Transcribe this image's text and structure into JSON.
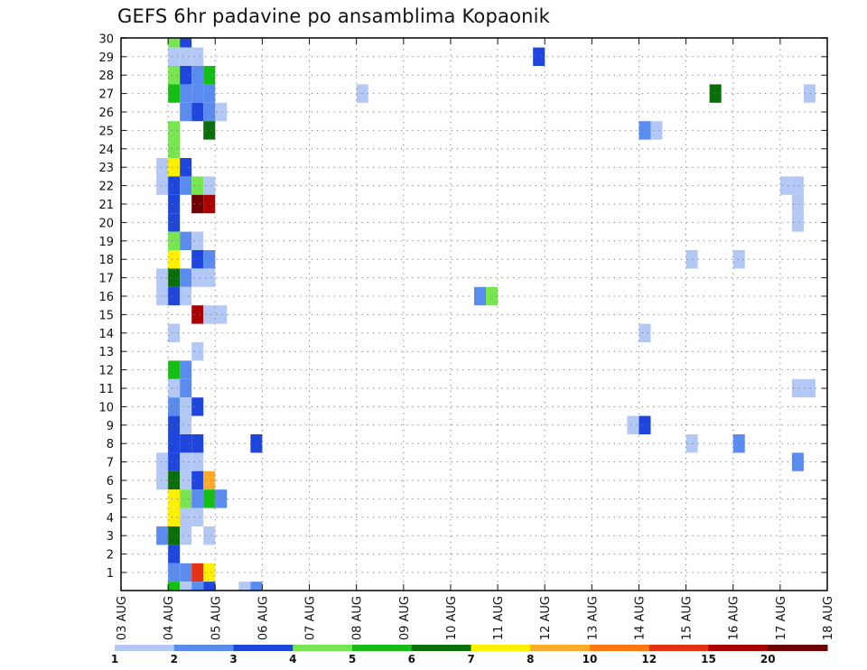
{
  "chart_data": {
    "type": "heatmap",
    "title": "GEFS 6hr padavine po ansamblima Kopaonik",
    "x_tick_labels": [
      "03 AUG",
      "04 AUG",
      "05 AUG",
      "06 AUG",
      "07 AUG",
      "08 AUG",
      "09 AUG",
      "10 AUG",
      "11 AUG",
      "12 AUG",
      "13 AUG",
      "14 AUG",
      "15 AUG",
      "16 AUG",
      "17 AUG",
      "18 AUG"
    ],
    "y_tick_labels": [
      "1",
      "2",
      "3",
      "4",
      "5",
      "6",
      "7",
      "8",
      "9",
      "10",
      "11",
      "12",
      "13",
      "14",
      "15",
      "16",
      "17",
      "18",
      "19",
      "20",
      "21",
      "22",
      "23",
      "24",
      "25",
      "26",
      "27",
      "28",
      "29",
      "30"
    ],
    "xlim": [
      "03 AUG 00Z",
      "18 AUG 00Z"
    ],
    "ylim": [
      1,
      30
    ],
    "grid": true,
    "legend_position": "bottom",
    "color_scale": {
      "labels": [
        "1",
        "2",
        "3",
        "4",
        "5",
        "6",
        "7",
        "8",
        "10",
        "12",
        "15",
        "20"
      ],
      "colors": [
        "#b4c8f5",
        "#5a8cf0",
        "#1e46dc",
        "#78e650",
        "#14be14",
        "#0a6e0a",
        "#fff000",
        "#ffaa28",
        "#ff7814",
        "#e63214",
        "#aa0000",
        "#6e0000"
      ]
    },
    "cells": [
      {
        "member": 30,
        "t": 4,
        "c": "#78e650"
      },
      {
        "member": 30,
        "t": 5,
        "c": "#1e46dc"
      },
      {
        "member": 29,
        "t": 4,
        "c": "#b4c8f5"
      },
      {
        "member": 29,
        "t": 5,
        "c": "#b4c8f5"
      },
      {
        "member": 29,
        "t": 6,
        "c": "#b4c8f5"
      },
      {
        "member": 29,
        "t": 35,
        "c": "#1e46dc"
      },
      {
        "member": 28,
        "t": 4,
        "c": "#78e650"
      },
      {
        "member": 28,
        "t": 5,
        "c": "#1e46dc"
      },
      {
        "member": 28,
        "t": 6,
        "c": "#5a8cf0"
      },
      {
        "member": 28,
        "t": 7,
        "c": "#14be14"
      },
      {
        "member": 27,
        "t": 4,
        "c": "#14be14"
      },
      {
        "member": 27,
        "t": 5,
        "c": "#5a8cf0"
      },
      {
        "member": 27,
        "t": 6,
        "c": "#5a8cf0"
      },
      {
        "member": 27,
        "t": 7,
        "c": "#5a8cf0"
      },
      {
        "member": 27,
        "t": 20,
        "c": "#b4c8f5"
      },
      {
        "member": 27,
        "t": 50,
        "c": "#0a6e0a"
      },
      {
        "member": 27,
        "t": 58,
        "c": "#b4c8f5"
      },
      {
        "member": 26,
        "t": 5,
        "c": "#5a8cf0"
      },
      {
        "member": 26,
        "t": 6,
        "c": "#1e46dc"
      },
      {
        "member": 26,
        "t": 7,
        "c": "#5a8cf0"
      },
      {
        "member": 26,
        "t": 8,
        "c": "#b4c8f5"
      },
      {
        "member": 25,
        "t": 4,
        "c": "#78e650"
      },
      {
        "member": 25,
        "t": 7,
        "c": "#0a6e0a"
      },
      {
        "member": 25,
        "t": 44,
        "c": "#5a8cf0"
      },
      {
        "member": 25,
        "t": 45,
        "c": "#b4c8f5"
      },
      {
        "member": 24,
        "t": 4,
        "c": "#78e650"
      },
      {
        "member": 23,
        "t": 3,
        "c": "#b4c8f5"
      },
      {
        "member": 23,
        "t": 4,
        "c": "#fff000"
      },
      {
        "member": 23,
        "t": 5,
        "c": "#1e46dc"
      },
      {
        "member": 22,
        "t": 3,
        "c": "#b4c8f5"
      },
      {
        "member": 22,
        "t": 4,
        "c": "#1e46dc"
      },
      {
        "member": 22,
        "t": 5,
        "c": "#5a8cf0"
      },
      {
        "member": 22,
        "t": 6,
        "c": "#78e650"
      },
      {
        "member": 22,
        "t": 7,
        "c": "#b4c8f5"
      },
      {
        "member": 22,
        "t": 56,
        "c": "#b4c8f5"
      },
      {
        "member": 22,
        "t": 57,
        "c": "#b4c8f5"
      },
      {
        "member": 21,
        "t": 4,
        "c": "#1e46dc"
      },
      {
        "member": 21,
        "t": 6,
        "c": "#6e0000"
      },
      {
        "member": 21,
        "t": 7,
        "c": "#aa0000"
      },
      {
        "member": 21,
        "t": 57,
        "c": "#b4c8f5"
      },
      {
        "member": 20,
        "t": 4,
        "c": "#1e46dc"
      },
      {
        "member": 20,
        "t": 57,
        "c": "#b4c8f5"
      },
      {
        "member": 20,
        "t": 60,
        "c": "#1e46dc"
      },
      {
        "member": 19,
        "t": 4,
        "c": "#78e650"
      },
      {
        "member": 19,
        "t": 5,
        "c": "#5a8cf0"
      },
      {
        "member": 19,
        "t": 6,
        "c": "#b4c8f5"
      },
      {
        "member": 18,
        "t": 4,
        "c": "#fff000"
      },
      {
        "member": 18,
        "t": 6,
        "c": "#1e46dc"
      },
      {
        "member": 18,
        "t": 7,
        "c": "#5a8cf0"
      },
      {
        "member": 18,
        "t": 48,
        "c": "#b4c8f5"
      },
      {
        "member": 18,
        "t": 52,
        "c": "#b4c8f5"
      },
      {
        "member": 17,
        "t": 3,
        "c": "#b4c8f5"
      },
      {
        "member": 17,
        "t": 4,
        "c": "#0a6e0a"
      },
      {
        "member": 17,
        "t": 5,
        "c": "#5a8cf0"
      },
      {
        "member": 17,
        "t": 6,
        "c": "#b4c8f5"
      },
      {
        "member": 17,
        "t": 7,
        "c": "#b4c8f5"
      },
      {
        "member": 16,
        "t": 3,
        "c": "#b4c8f5"
      },
      {
        "member": 16,
        "t": 4,
        "c": "#1e46dc"
      },
      {
        "member": 16,
        "t": 5,
        "c": "#b4c8f5"
      },
      {
        "member": 16,
        "t": 30,
        "c": "#5a8cf0"
      },
      {
        "member": 16,
        "t": 31,
        "c": "#78e650"
      },
      {
        "member": 15,
        "t": 6,
        "c": "#aa0000"
      },
      {
        "member": 15,
        "t": 7,
        "c": "#b4c8f5"
      },
      {
        "member": 15,
        "t": 8,
        "c": "#b4c8f5"
      },
      {
        "member": 14,
        "t": 4,
        "c": "#b4c8f5"
      },
      {
        "member": 14,
        "t": 44,
        "c": "#b4c8f5"
      },
      {
        "member": 13,
        "t": 6,
        "c": "#b4c8f5"
      },
      {
        "member": 12,
        "t": 4,
        "c": "#14be14"
      },
      {
        "member": 12,
        "t": 5,
        "c": "#5a8cf0"
      },
      {
        "member": 11,
        "t": 4,
        "c": "#b4c8f5"
      },
      {
        "member": 11,
        "t": 5,
        "c": "#5a8cf0"
      },
      {
        "member": 11,
        "t": 57,
        "c": "#b4c8f5"
      },
      {
        "member": 11,
        "t": 58,
        "c": "#b4c8f5"
      },
      {
        "member": 10,
        "t": 4,
        "c": "#5a8cf0"
      },
      {
        "member": 10,
        "t": 5,
        "c": "#b4c8f5"
      },
      {
        "member": 10,
        "t": 6,
        "c": "#1e46dc"
      },
      {
        "member": 9,
        "t": 4,
        "c": "#1e46dc"
      },
      {
        "member": 9,
        "t": 5,
        "c": "#b4c8f5"
      },
      {
        "member": 9,
        "t": 43,
        "c": "#b4c8f5"
      },
      {
        "member": 9,
        "t": 44,
        "c": "#1e46dc"
      },
      {
        "member": 8,
        "t": 4,
        "c": "#1e46dc"
      },
      {
        "member": 8,
        "t": 5,
        "c": "#1e46dc"
      },
      {
        "member": 8,
        "t": 6,
        "c": "#1e46dc"
      },
      {
        "member": 8,
        "t": 11,
        "c": "#1e46dc"
      },
      {
        "member": 8,
        "t": 48,
        "c": "#b4c8f5"
      },
      {
        "member": 8,
        "t": 52,
        "c": "#5a8cf0"
      },
      {
        "member": 7,
        "t": 3,
        "c": "#b4c8f5"
      },
      {
        "member": 7,
        "t": 4,
        "c": "#1e46dc"
      },
      {
        "member": 7,
        "t": 5,
        "c": "#b4c8f5"
      },
      {
        "member": 7,
        "t": 6,
        "c": "#b4c8f5"
      },
      {
        "member": 7,
        "t": 57,
        "c": "#5a8cf0"
      },
      {
        "member": 7,
        "t": 60,
        "c": "#b4c8f5"
      },
      {
        "member": 6,
        "t": 3,
        "c": "#b4c8f5"
      },
      {
        "member": 6,
        "t": 4,
        "c": "#0a6e0a"
      },
      {
        "member": 6,
        "t": 5,
        "c": "#b4c8f5"
      },
      {
        "member": 6,
        "t": 6,
        "c": "#1e46dc"
      },
      {
        "member": 6,
        "t": 7,
        "c": "#ffaa28"
      },
      {
        "member": 5,
        "t": 4,
        "c": "#fff000"
      },
      {
        "member": 5,
        "t": 5,
        "c": "#78e650"
      },
      {
        "member": 5,
        "t": 6,
        "c": "#5a8cf0"
      },
      {
        "member": 5,
        "t": 7,
        "c": "#14be14"
      },
      {
        "member": 5,
        "t": 8,
        "c": "#5a8cf0"
      },
      {
        "member": 4,
        "t": 4,
        "c": "#fff000"
      },
      {
        "member": 4,
        "t": 5,
        "c": "#b4c8f5"
      },
      {
        "member": 4,
        "t": 6,
        "c": "#b4c8f5"
      },
      {
        "member": 3,
        "t": 3,
        "c": "#5a8cf0"
      },
      {
        "member": 3,
        "t": 4,
        "c": "#0a6e0a"
      },
      {
        "member": 3,
        "t": 5,
        "c": "#b4c8f5"
      },
      {
        "member": 3,
        "t": 7,
        "c": "#b4c8f5"
      },
      {
        "member": 2,
        "t": 4,
        "c": "#1e46dc"
      },
      {
        "member": 1,
        "t": 4,
        "c": "#5a8cf0"
      },
      {
        "member": 1,
        "t": 5,
        "c": "#5a8cf0"
      },
      {
        "member": 1,
        "t": 6,
        "c": "#e63214"
      },
      {
        "member": 1,
        "t": 7,
        "c": "#fff000"
      },
      {
        "member": 0,
        "t": 4,
        "c": "#14be14"
      },
      {
        "member": 0,
        "t": 5,
        "c": "#b4c8f5"
      },
      {
        "member": 0,
        "t": 6,
        "c": "#5a8cf0"
      },
      {
        "member": 0,
        "t": 7,
        "c": "#1e46dc"
      },
      {
        "member": 0,
        "t": 10,
        "c": "#b4c8f5"
      },
      {
        "member": 0,
        "t": 11,
        "c": "#5a8cf0"
      },
      {
        "member": -1,
        "t": 4,
        "c": "#14be14"
      },
      {
        "member": -1,
        "t": 6,
        "c": "#b4c8f5"
      },
      {
        "member": -1,
        "t": 7,
        "c": "#1e46dc"
      },
      {
        "member": -1,
        "t": 60,
        "c": "#b4c8f5"
      }
    ]
  }
}
